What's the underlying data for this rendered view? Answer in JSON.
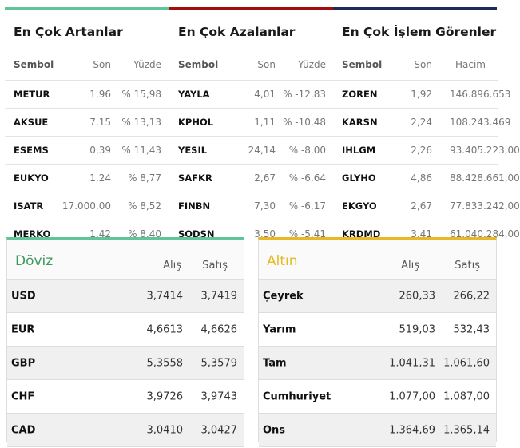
{
  "colors": {
    "rising": "#5fc496",
    "falling": "#a50d0d",
    "volume": "#1b2b5a",
    "doviz": "#3f9a62",
    "altin": "#e8b923"
  },
  "lists": [
    {
      "title": "En Çok Artanlar",
      "headers": [
        "Sembol",
        "Son",
        "Yüzde"
      ],
      "rows": [
        [
          "METUR",
          "1,96",
          "% 15,98"
        ],
        [
          "AKSUE",
          "7,15",
          "% 13,13"
        ],
        [
          "ESEMS",
          "0,39",
          "% 11,43"
        ],
        [
          "EUKYO",
          "1,24",
          "% 8,77"
        ],
        [
          "ISATR",
          "17.000,00",
          "% 8,52"
        ],
        [
          "MERKO",
          "1,42",
          "% 8,40"
        ]
      ]
    },
    {
      "title": "En Çok Azalanlar",
      "headers": [
        "Sembol",
        "Son",
        "Yüzde"
      ],
      "rows": [
        [
          "YAYLA",
          "4,01",
          "% -12,83"
        ],
        [
          "KPHOL",
          "1,11",
          "% -10,48"
        ],
        [
          "YESIL",
          "24,14",
          "% -8,00"
        ],
        [
          "SAFKR",
          "2,67",
          "% -6,64"
        ],
        [
          "FINBN",
          "7,30",
          "% -6,17"
        ],
        [
          "SODSN",
          "3,50",
          "% -5,41"
        ]
      ]
    },
    {
      "title": "En Çok İşlem Görenler",
      "headers": [
        "Sembol",
        "Son",
        "Hacim"
      ],
      "rows": [
        [
          "ZOREN",
          "1,92",
          "146.896.653"
        ],
        [
          "KARSN",
          "2,24",
          "108.243.469"
        ],
        [
          "IHLGM",
          "2,26",
          "93.405.223,00"
        ],
        [
          "GLYHO",
          "4,86",
          "88.428.661,00"
        ],
        [
          "EKGYO",
          "2,67",
          "77.833.242,00"
        ],
        [
          "KRDMD",
          "3,41",
          "61.040.284,00"
        ]
      ]
    }
  ],
  "doviz": {
    "title": "Döviz",
    "buy": "Alış",
    "sell": "Satış",
    "rows": [
      [
        "USD",
        "3,7414",
        "3,7419"
      ],
      [
        "EUR",
        "4,6613",
        "4,6626"
      ],
      [
        "GBP",
        "5,3558",
        "5,3579"
      ],
      [
        "CHF",
        "3,9726",
        "3,9743"
      ],
      [
        "CAD",
        "3,0410",
        "3,0427"
      ]
    ]
  },
  "altin": {
    "title": "Altın",
    "buy": "Alış",
    "sell": "Satış",
    "rows": [
      [
        "Çeyrek",
        "260,33",
        "266,22"
      ],
      [
        "Yarım",
        "519,03",
        "532,43"
      ],
      [
        "Tam",
        "1.041,31",
        "1.061,60"
      ],
      [
        "Cumhuriyet",
        "1.077,00",
        "1.087,00"
      ],
      [
        "Ons",
        "1.364,69",
        "1.365,14"
      ]
    ]
  }
}
